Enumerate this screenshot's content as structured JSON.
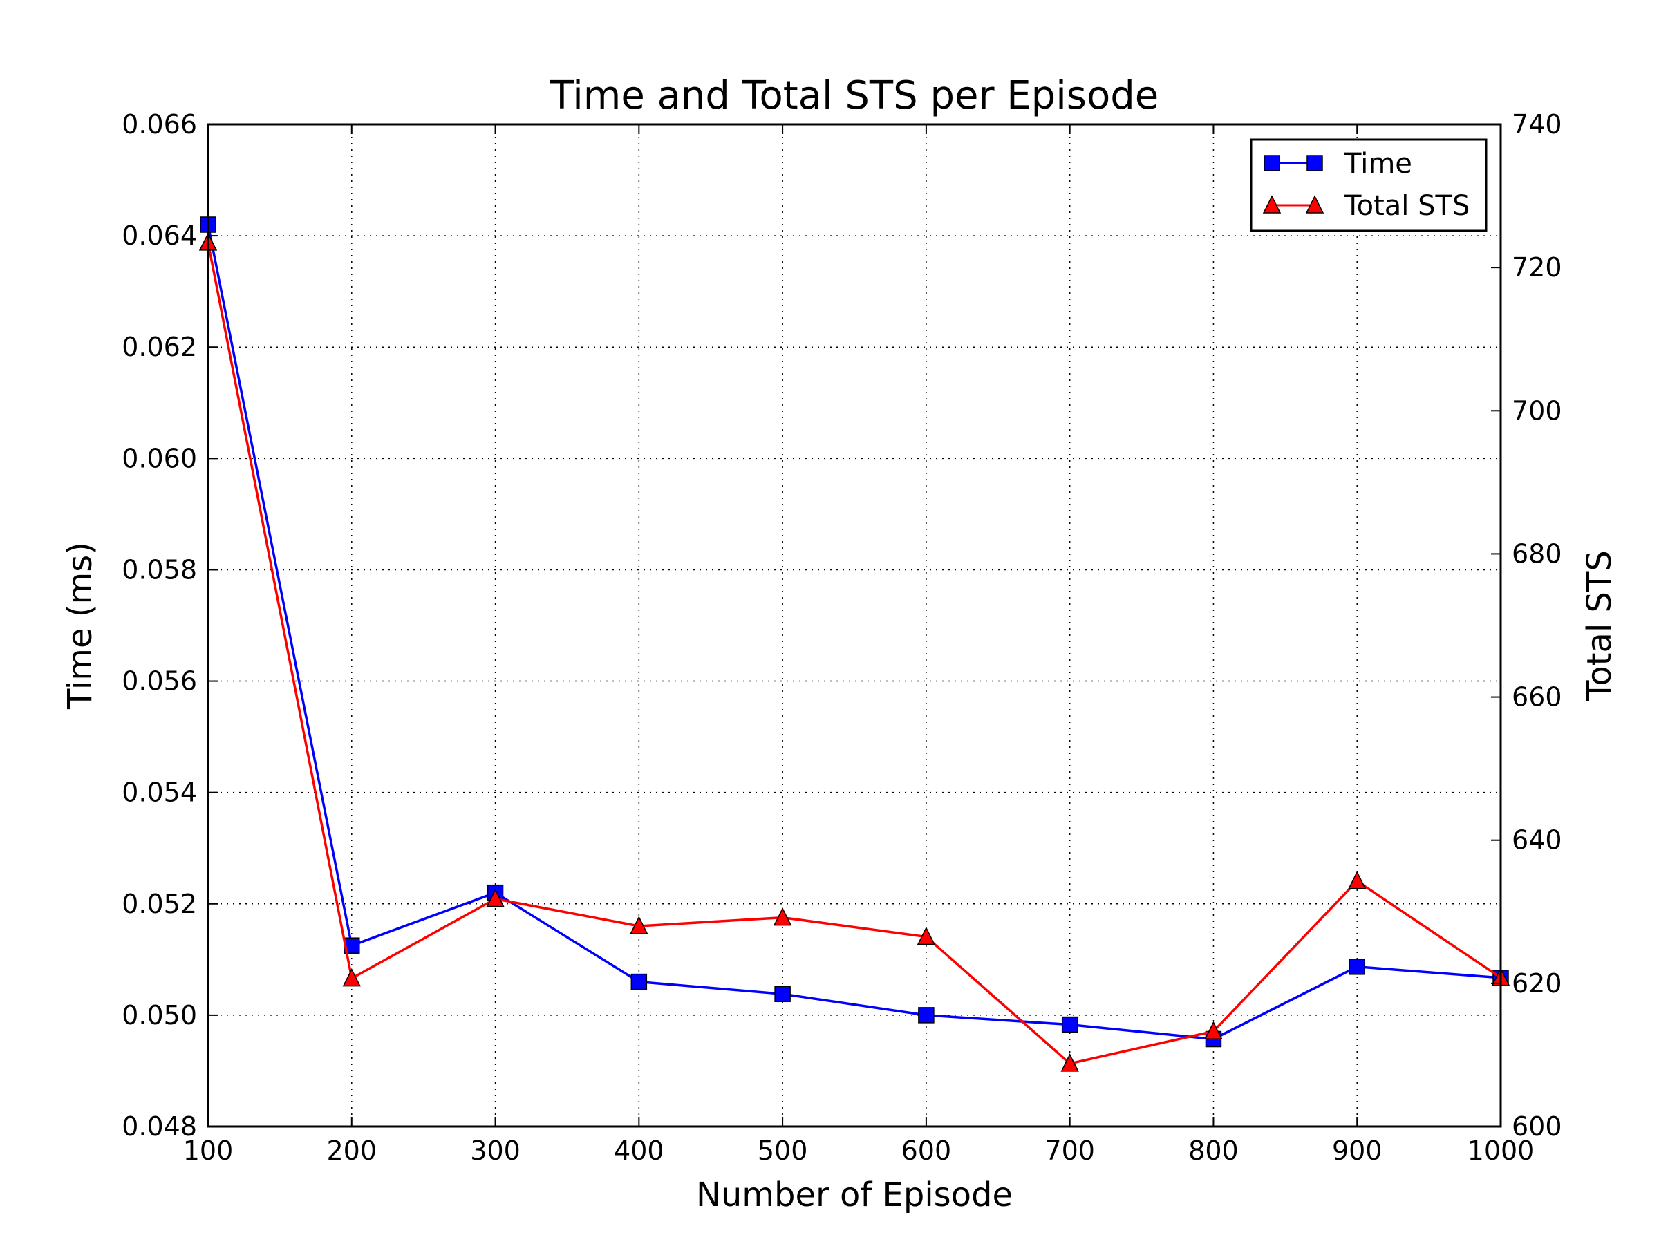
{
  "chart_data": {
    "type": "line",
    "title": "Time and Total STS per Episode",
    "xlabel": "Number of Episode",
    "ylabel": "Time (ms)",
    "y2label": "Total STS",
    "x": [
      100,
      200,
      300,
      400,
      500,
      600,
      700,
      800,
      900,
      1000
    ],
    "x_ticks": [
      "100",
      "200",
      "300",
      "400",
      "500",
      "600",
      "700",
      "800",
      "900",
      "1000"
    ],
    "xlim": [
      100,
      1000
    ],
    "ylim": [
      0.048,
      0.066
    ],
    "y_ticks": [
      "0.048",
      "0.050",
      "0.052",
      "0.054",
      "0.056",
      "0.058",
      "0.060",
      "0.062",
      "0.064",
      "0.066"
    ],
    "y2lim": [
      600,
      740
    ],
    "y2_ticks": [
      "600",
      "620",
      "640",
      "660",
      "680",
      "700",
      "720",
      "740"
    ],
    "grid": true,
    "legend_position": "top-right",
    "series": [
      {
        "name": "Time",
        "axis": "left",
        "color": "#0000ff",
        "marker": "square",
        "values": [
          0.0642,
          0.05125,
          0.0522,
          0.0506,
          0.05038,
          0.05,
          0.04983,
          0.04957,
          0.05087,
          0.05067
        ]
      },
      {
        "name": "Total STS",
        "axis": "right",
        "color": "#ff0000",
        "marker": "triangle",
        "values": [
          723.5,
          620.7,
          631.8,
          628.0,
          629.2,
          626.5,
          608.8,
          613.3,
          634.3,
          620.8
        ]
      }
    ]
  }
}
